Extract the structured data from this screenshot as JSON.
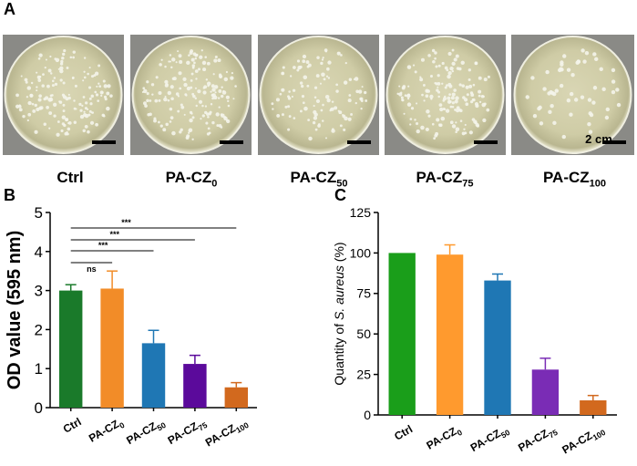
{
  "panels": {
    "a": "A",
    "b": "B",
    "c": "C"
  },
  "plates": {
    "scale_bar_label": "2 cm",
    "labels": [
      {
        "main": "Ctrl",
        "sub": ""
      },
      {
        "main": "PA-CZ",
        "sub": "0"
      },
      {
        "main": "PA-CZ",
        "sub": "50"
      },
      {
        "main": "PA-CZ",
        "sub": "75"
      },
      {
        "main": "PA-CZ",
        "sub": "100"
      }
    ]
  },
  "chart_data": [
    {
      "type": "bar",
      "categories": [
        "Ctrl",
        "PA-CZ0",
        "PA-CZ50",
        "PA-CZ75",
        "PA-CZ100"
      ],
      "category_labels": [
        {
          "main": "Ctrl",
          "sub": ""
        },
        {
          "main": "PA-CZ",
          "sub": "0"
        },
        {
          "main": "PA-CZ",
          "sub": "50"
        },
        {
          "main": "PA-CZ",
          "sub": "75"
        },
        {
          "main": "PA-CZ",
          "sub": "100"
        }
      ],
      "values": [
        3.0,
        3.05,
        1.65,
        1.12,
        0.52
      ],
      "errors": [
        0.15,
        0.45,
        0.33,
        0.22,
        0.12
      ],
      "colors": [
        "#1a7a2a",
        "#f28c28",
        "#1f77b4",
        "#5b0a9b",
        "#d2691e"
      ],
      "ylabel": "OD value (595 nm)",
      "ylim": [
        0,
        5
      ],
      "yticks": [
        "0",
        "1",
        "2",
        "3",
        "4",
        "5"
      ],
      "significance": [
        {
          "from": 0,
          "to": 1,
          "label": "ns"
        },
        {
          "from": 0,
          "to": 2,
          "label": "***"
        },
        {
          "from": 0,
          "to": 3,
          "label": "***"
        },
        {
          "from": 0,
          "to": 4,
          "label": "***"
        }
      ]
    },
    {
      "type": "bar",
      "categories": [
        "Ctrl",
        "PA-CZ0",
        "PA-CZ50",
        "PA-CZ75",
        "PA-CZ100"
      ],
      "category_labels": [
        {
          "main": "Ctrl",
          "sub": ""
        },
        {
          "main": "PA-CZ",
          "sub": "0"
        },
        {
          "main": "PA-CZ",
          "sub": "50"
        },
        {
          "main": "PA-CZ",
          "sub": "75"
        },
        {
          "main": "PA-CZ",
          "sub": "100"
        }
      ],
      "values": [
        100,
        99,
        83,
        28,
        9
      ],
      "errors": [
        0,
        6,
        4,
        7,
        3
      ],
      "colors": [
        "#1a9e1a",
        "#ff9a2e",
        "#1f77b4",
        "#7a2cb5",
        "#d2691e"
      ],
      "ylabel_parts": [
        "Quantity of ",
        "S. aureus",
        " (%)"
      ],
      "ylim": [
        0,
        125
      ],
      "yticks": [
        "0",
        "25",
        "50",
        "75",
        "100",
        "125"
      ]
    }
  ]
}
